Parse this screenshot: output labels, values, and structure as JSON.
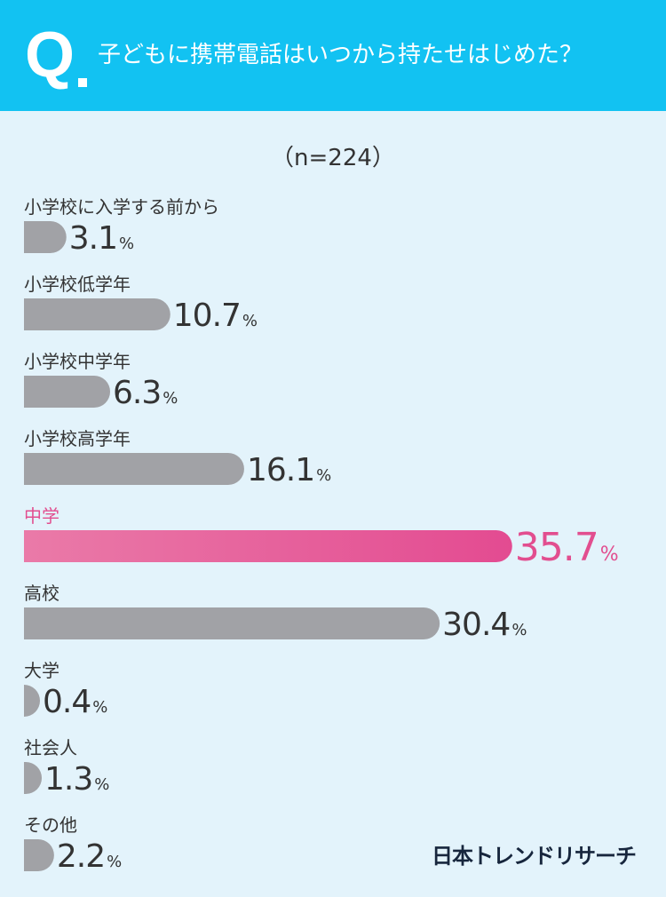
{
  "header": {
    "q_letter": "Q",
    "question": "子どもに携帯電話はいつから持たせはじめた？"
  },
  "sample_size": "（n=224）",
  "colors": {
    "header_bg": "#12c2f2",
    "page_bg": "#e3f3fb",
    "bar_default": "#a1a2a6",
    "bar_highlight_start": "#ea7aa8",
    "bar_highlight_end": "#e34b91",
    "highlight_text": "#e24e8f",
    "text_dark": "#333333"
  },
  "chart_data": {
    "type": "bar",
    "orientation": "horizontal",
    "unit": "%",
    "categories": [
      "小学校に入学する前から",
      "小学校低学年",
      "小学校中学年",
      "小学校高学年",
      "中学",
      "高校",
      "大学",
      "社会人",
      "その他"
    ],
    "values": [
      3.1,
      10.7,
      6.3,
      16.1,
      35.7,
      30.4,
      0.4,
      1.3,
      2.2
    ],
    "value_labels": [
      "3.1",
      "10.7",
      "6.3",
      "16.1",
      "35.7",
      "30.4",
      "0.4",
      "1.3",
      "2.2"
    ],
    "highlight_index": 4,
    "title": "",
    "xlabel": "",
    "ylabel": "",
    "grid": false,
    "legend": "none"
  },
  "brand": {
    "name": "日本トレンドリサーチ"
  }
}
